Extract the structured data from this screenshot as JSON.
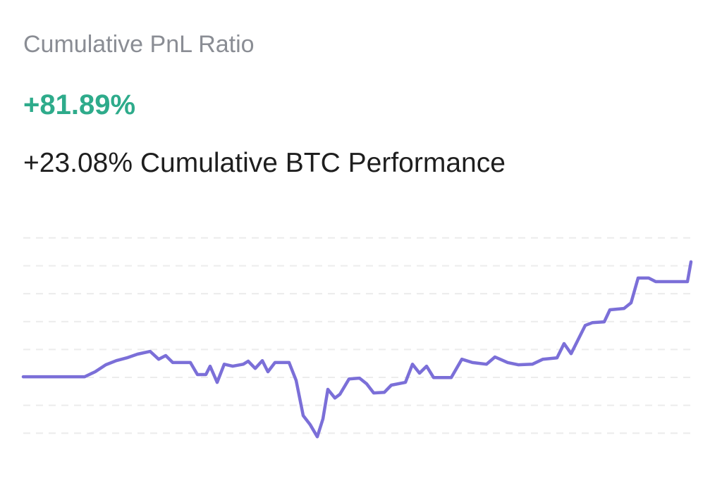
{
  "header": {
    "title": "Cumulative PnL Ratio",
    "value": "+81.89%",
    "subtitle": "+23.08% Cumulative BTC Performance"
  },
  "chart_data": {
    "type": "line",
    "color": "#7b6fd8",
    "grid": true,
    "xlim": [
      0,
      947
    ],
    "ylim": [
      -0.5,
      7.5
    ],
    "yticks": [
      0,
      1,
      2,
      3,
      4,
      5,
      6,
      7
    ],
    "x": [
      0,
      87,
      102,
      117,
      132,
      147,
      162,
      180,
      192,
      202,
      212,
      237,
      247,
      259,
      265,
      275,
      285,
      297,
      312,
      319,
      329,
      339,
      347,
      357,
      377,
      387,
      397,
      407,
      417,
      425,
      432,
      442,
      449,
      462,
      477,
      487,
      497,
      512,
      522,
      542,
      552,
      562,
      572,
      582,
      607,
      622,
      637,
      657,
      669,
      687,
      702,
      722,
      737,
      757,
      767,
      777,
      797,
      807,
      824,
      832,
      852,
      862,
      872,
      887,
      897,
      942,
      947
    ],
    "values": [
      2.02,
      2.02,
      2.2,
      2.45,
      2.6,
      2.7,
      2.83,
      2.93,
      2.65,
      2.78,
      2.53,
      2.53,
      2.1,
      2.1,
      2.4,
      1.82,
      2.47,
      2.4,
      2.47,
      2.58,
      2.32,
      2.6,
      2.2,
      2.53,
      2.53,
      1.89,
      0.63,
      0.3,
      -0.13,
      0.51,
      1.57,
      1.26,
      1.39,
      1.94,
      1.97,
      1.77,
      1.44,
      1.46,
      1.72,
      1.82,
      2.47,
      2.15,
      2.4,
      1.99,
      1.99,
      2.65,
      2.53,
      2.47,
      2.73,
      2.53,
      2.45,
      2.47,
      2.65,
      2.7,
      3.21,
      2.85,
      3.86,
      3.96,
      3.99,
      4.42,
      4.47,
      4.67,
      5.56,
      5.56,
      5.43,
      5.43,
      6.14
    ]
  }
}
